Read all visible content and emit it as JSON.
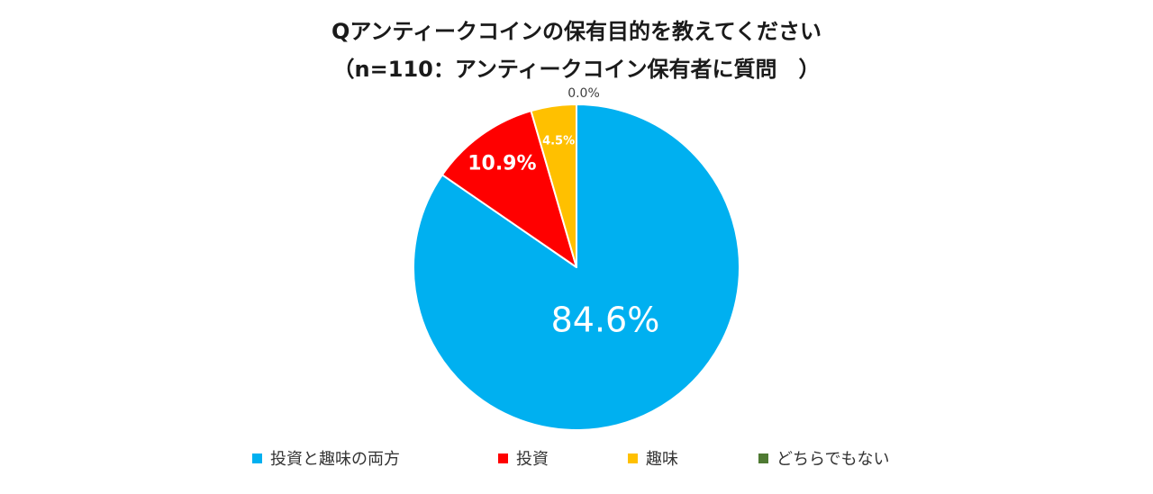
{
  "chart_data": {
    "type": "pie",
    "title": "Qアンティークコインの保有目的を教えてください",
    "subtitle": "（n=110：アンティークコイン保有者に質問　）",
    "start_angle": "12 o'clock",
    "direction": "clockwise",
    "legend_position": "bottom",
    "slices": [
      {
        "label": "投資と趣味の両方",
        "value": 84.6,
        "display": "84.6%",
        "color": "#00B0F0",
        "label_color": "#FFFFFF"
      },
      {
        "label": "投資",
        "value": 10.9,
        "display": "10.9%",
        "color": "#FF0000",
        "label_color": "#FFFFFF"
      },
      {
        "label": "趣味",
        "value": 4.5,
        "display": "4.5%",
        "color": "#FFC000",
        "label_color": "#FFFFFF"
      },
      {
        "label": "どちらでもない",
        "value": 0.0,
        "display": "0.0%",
        "color": "#4F7A33",
        "label_color": "#404040"
      }
    ]
  }
}
